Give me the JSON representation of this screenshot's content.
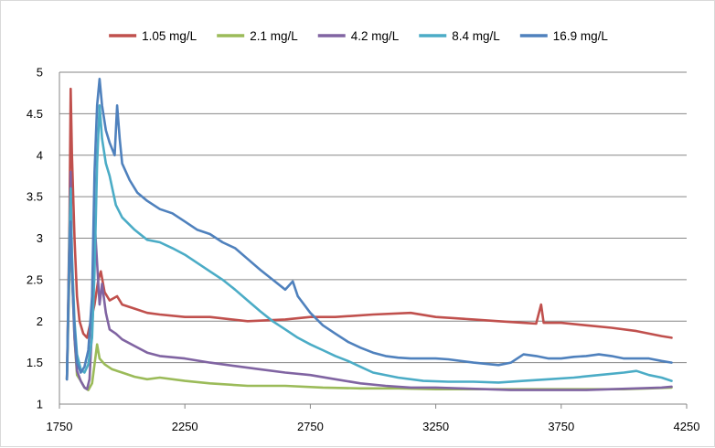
{
  "chart_data": {
    "type": "line",
    "title": "",
    "xlabel": "",
    "ylabel": "",
    "xlim": [
      1750,
      4250
    ],
    "ylim": [
      1,
      5
    ],
    "x_ticks": [
      1750,
      2250,
      2750,
      3250,
      3750,
      4250
    ],
    "y_ticks": [
      1,
      1.5,
      2,
      2.5,
      3,
      3.5,
      4,
      4.5,
      5
    ],
    "y_tick_labels": [
      "1",
      "1.5",
      "2",
      "2.5",
      "3",
      "3.5",
      "4",
      "4.5",
      "5"
    ],
    "grid": "horizontal",
    "legend_position": "top",
    "series": [
      {
        "name": "1.05 mg/L",
        "color": "#C0504D",
        "points": [
          [
            1780,
            1.3
          ],
          [
            1790,
            3.2
          ],
          [
            1795,
            4.8
          ],
          [
            1800,
            4.0
          ],
          [
            1810,
            3.0
          ],
          [
            1820,
            2.3
          ],
          [
            1830,
            2.0
          ],
          [
            1845,
            1.85
          ],
          [
            1860,
            1.8
          ],
          [
            1875,
            2.0
          ],
          [
            1890,
            2.2
          ],
          [
            1905,
            2.5
          ],
          [
            1915,
            2.6
          ],
          [
            1930,
            2.35
          ],
          [
            1950,
            2.25
          ],
          [
            1980,
            2.3
          ],
          [
            2000,
            2.2
          ],
          [
            2050,
            2.15
          ],
          [
            2100,
            2.1
          ],
          [
            2150,
            2.08
          ],
          [
            2250,
            2.05
          ],
          [
            2350,
            2.05
          ],
          [
            2500,
            2.0
          ],
          [
            2650,
            2.02
          ],
          [
            2750,
            2.05
          ],
          [
            2850,
            2.05
          ],
          [
            3000,
            2.08
          ],
          [
            3150,
            2.1
          ],
          [
            3250,
            2.05
          ],
          [
            3400,
            2.02
          ],
          [
            3500,
            2.0
          ],
          [
            3600,
            1.98
          ],
          [
            3650,
            1.97
          ],
          [
            3670,
            2.2
          ],
          [
            3680,
            1.98
          ],
          [
            3750,
            1.98
          ],
          [
            3850,
            1.95
          ],
          [
            3950,
            1.92
          ],
          [
            4050,
            1.88
          ],
          [
            4150,
            1.82
          ],
          [
            4190,
            1.8
          ]
        ]
      },
      {
        "name": "2.1 mg/L",
        "color": "#9BBB59",
        "points": [
          [
            1780,
            1.3
          ],
          [
            1790,
            2.6
          ],
          [
            1795,
            3.5
          ],
          [
            1800,
            2.6
          ],
          [
            1810,
            1.8
          ],
          [
            1820,
            1.35
          ],
          [
            1835,
            1.28
          ],
          [
            1850,
            1.2
          ],
          [
            1865,
            1.17
          ],
          [
            1880,
            1.25
          ],
          [
            1895,
            1.6
          ],
          [
            1900,
            1.72
          ],
          [
            1910,
            1.55
          ],
          [
            1930,
            1.48
          ],
          [
            1960,
            1.42
          ],
          [
            2000,
            1.38
          ],
          [
            2050,
            1.33
          ],
          [
            2100,
            1.3
          ],
          [
            2150,
            1.32
          ],
          [
            2250,
            1.28
          ],
          [
            2350,
            1.25
          ],
          [
            2500,
            1.22
          ],
          [
            2650,
            1.22
          ],
          [
            2800,
            1.2
          ],
          [
            2950,
            1.19
          ],
          [
            3100,
            1.19
          ],
          [
            3250,
            1.18
          ],
          [
            3400,
            1.18
          ],
          [
            3550,
            1.18
          ],
          [
            3700,
            1.18
          ],
          [
            3850,
            1.18
          ],
          [
            4000,
            1.18
          ],
          [
            4100,
            1.19
          ],
          [
            4190,
            1.2
          ]
        ]
      },
      {
        "name": "4.2 mg/L",
        "color": "#8064A2",
        "points": [
          [
            1780,
            1.3
          ],
          [
            1790,
            3.0
          ],
          [
            1795,
            3.8
          ],
          [
            1800,
            2.6
          ],
          [
            1810,
            1.8
          ],
          [
            1820,
            1.4
          ],
          [
            1835,
            1.28
          ],
          [
            1850,
            1.2
          ],
          [
            1860,
            1.18
          ],
          [
            1870,
            1.3
          ],
          [
            1885,
            2.2
          ],
          [
            1892,
            3.1
          ],
          [
            1900,
            2.7
          ],
          [
            1910,
            2.2
          ],
          [
            1920,
            2.45
          ],
          [
            1935,
            2.1
          ],
          [
            1950,
            1.9
          ],
          [
            1975,
            1.85
          ],
          [
            2000,
            1.78
          ],
          [
            2050,
            1.7
          ],
          [
            2100,
            1.62
          ],
          [
            2150,
            1.58
          ],
          [
            2250,
            1.55
          ],
          [
            2350,
            1.5
          ],
          [
            2450,
            1.46
          ],
          [
            2550,
            1.42
          ],
          [
            2650,
            1.38
          ],
          [
            2750,
            1.35
          ],
          [
            2850,
            1.3
          ],
          [
            2950,
            1.25
          ],
          [
            3050,
            1.22
          ],
          [
            3150,
            1.2
          ],
          [
            3250,
            1.2
          ],
          [
            3350,
            1.19
          ],
          [
            3450,
            1.18
          ],
          [
            3550,
            1.17
          ],
          [
            3650,
            1.17
          ],
          [
            3750,
            1.17
          ],
          [
            3850,
            1.17
          ],
          [
            3950,
            1.18
          ],
          [
            4050,
            1.19
          ],
          [
            4150,
            1.2
          ],
          [
            4190,
            1.21
          ]
        ]
      },
      {
        "name": "8.4 mg/L",
        "color": "#4BACC6",
        "points": [
          [
            1780,
            1.3
          ],
          [
            1790,
            3.0
          ],
          [
            1795,
            3.6
          ],
          [
            1800,
            2.8
          ],
          [
            1810,
            2.0
          ],
          [
            1820,
            1.6
          ],
          [
            1835,
            1.42
          ],
          [
            1850,
            1.38
          ],
          [
            1865,
            1.48
          ],
          [
            1880,
            1.8
          ],
          [
            1890,
            2.6
          ],
          [
            1900,
            3.9
          ],
          [
            1910,
            4.6
          ],
          [
            1920,
            4.2
          ],
          [
            1935,
            3.9
          ],
          [
            1950,
            3.75
          ],
          [
            1975,
            3.4
          ],
          [
            2000,
            3.25
          ],
          [
            2050,
            3.1
          ],
          [
            2100,
            2.98
          ],
          [
            2150,
            2.95
          ],
          [
            2200,
            2.88
          ],
          [
            2250,
            2.8
          ],
          [
            2300,
            2.7
          ],
          [
            2350,
            2.6
          ],
          [
            2400,
            2.5
          ],
          [
            2450,
            2.38
          ],
          [
            2500,
            2.25
          ],
          [
            2550,
            2.12
          ],
          [
            2600,
            2.0
          ],
          [
            2650,
            1.9
          ],
          [
            2700,
            1.8
          ],
          [
            2750,
            1.72
          ],
          [
            2800,
            1.65
          ],
          [
            2850,
            1.58
          ],
          [
            2900,
            1.52
          ],
          [
            2950,
            1.45
          ],
          [
            3000,
            1.38
          ],
          [
            3100,
            1.32
          ],
          [
            3200,
            1.28
          ],
          [
            3300,
            1.27
          ],
          [
            3400,
            1.27
          ],
          [
            3500,
            1.26
          ],
          [
            3600,
            1.28
          ],
          [
            3700,
            1.3
          ],
          [
            3800,
            1.32
          ],
          [
            3900,
            1.35
          ],
          [
            4000,
            1.38
          ],
          [
            4050,
            1.4
          ],
          [
            4100,
            1.35
          ],
          [
            4150,
            1.32
          ],
          [
            4190,
            1.28
          ]
        ]
      },
      {
        "name": "16.9 mg/L",
        "color": "#4F81BD",
        "points": [
          [
            1780,
            1.3
          ],
          [
            1790,
            2.8
          ],
          [
            1795,
            3.2
          ],
          [
            1800,
            2.6
          ],
          [
            1810,
            1.9
          ],
          [
            1820,
            1.5
          ],
          [
            1835,
            1.38
          ],
          [
            1850,
            1.45
          ],
          [
            1865,
            1.65
          ],
          [
            1880,
            2.3
          ],
          [
            1890,
            3.8
          ],
          [
            1900,
            4.6
          ],
          [
            1910,
            4.92
          ],
          [
            1920,
            4.6
          ],
          [
            1935,
            4.3
          ],
          [
            1950,
            4.15
          ],
          [
            1970,
            4.0
          ],
          [
            1980,
            4.6
          ],
          [
            1990,
            4.2
          ],
          [
            2000,
            3.9
          ],
          [
            2030,
            3.7
          ],
          [
            2060,
            3.55
          ],
          [
            2100,
            3.45
          ],
          [
            2150,
            3.35
          ],
          [
            2200,
            3.3
          ],
          [
            2250,
            3.2
          ],
          [
            2300,
            3.1
          ],
          [
            2350,
            3.05
          ],
          [
            2400,
            2.95
          ],
          [
            2450,
            2.88
          ],
          [
            2500,
            2.75
          ],
          [
            2550,
            2.62
          ],
          [
            2600,
            2.5
          ],
          [
            2650,
            2.38
          ],
          [
            2680,
            2.48
          ],
          [
            2700,
            2.3
          ],
          [
            2750,
            2.1
          ],
          [
            2800,
            1.95
          ],
          [
            2850,
            1.85
          ],
          [
            2900,
            1.75
          ],
          [
            2950,
            1.68
          ],
          [
            3000,
            1.62
          ],
          [
            3050,
            1.58
          ],
          [
            3100,
            1.56
          ],
          [
            3150,
            1.55
          ],
          [
            3200,
            1.55
          ],
          [
            3250,
            1.55
          ],
          [
            3300,
            1.54
          ],
          [
            3400,
            1.5
          ],
          [
            3500,
            1.47
          ],
          [
            3550,
            1.5
          ],
          [
            3600,
            1.6
          ],
          [
            3650,
            1.58
          ],
          [
            3700,
            1.55
          ],
          [
            3750,
            1.55
          ],
          [
            3800,
            1.57
          ],
          [
            3850,
            1.58
          ],
          [
            3900,
            1.6
          ],
          [
            3950,
            1.58
          ],
          [
            4000,
            1.55
          ],
          [
            4050,
            1.55
          ],
          [
            4100,
            1.55
          ],
          [
            4150,
            1.52
          ],
          [
            4190,
            1.5
          ]
        ]
      }
    ]
  }
}
